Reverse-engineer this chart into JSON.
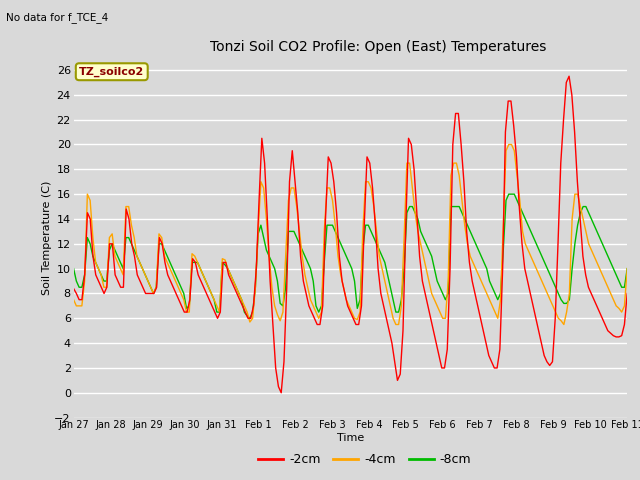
{
  "title": "Tonzi Soil CO2 Profile: Open (East) Temperatures",
  "subtitle": "No data for f_TCE_4",
  "xlabel": "Time",
  "ylabel": "Soil Temperature (C)",
  "ylim": [
    -2,
    27
  ],
  "yticks": [
    -2,
    0,
    2,
    4,
    6,
    8,
    10,
    12,
    14,
    16,
    18,
    20,
    22,
    24,
    26
  ],
  "legend_label": "TZ_soilco2",
  "tick_labels": [
    "Jan 27",
    "Jan 28",
    "Jan 29",
    "Jan 30",
    "Jan 31",
    "Feb 1",
    "Feb 2",
    "Feb 3",
    "Feb 4",
    "Feb 5",
    "Feb 6",
    "Feb 7",
    "Feb 8",
    "Feb 9",
    "Feb 10",
    "Feb 11"
  ],
  "figsize": [
    6.4,
    4.8
  ],
  "dpi": 100,
  "bg_color": "#d8d8d8",
  "plot_bg": "#d9d9d9",
  "grid_color": "#ffffff",
  "red_color": "#ff0000",
  "orange_color": "#ffa500",
  "green_color": "#00bb00",
  "red_2cm": [
    8.4,
    8.0,
    7.5,
    7.5,
    9.5,
    14.5,
    14.0,
    11.0,
    9.5,
    9.0,
    8.5,
    8.0,
    8.5,
    12.0,
    12.0,
    9.5,
    9.0,
    8.5,
    8.5,
    14.8,
    14.0,
    12.0,
    11.0,
    9.5,
    9.0,
    8.5,
    8.0,
    8.0,
    8.0,
    8.0,
    8.5,
    12.5,
    12.0,
    10.5,
    9.5,
    9.0,
    8.5,
    8.0,
    7.5,
    7.0,
    6.5,
    6.5,
    7.5,
    10.8,
    10.5,
    9.5,
    9.0,
    8.5,
    8.0,
    7.5,
    7.0,
    6.5,
    6.0,
    6.5,
    10.5,
    10.5,
    9.5,
    9.0,
    8.5,
    8.0,
    7.5,
    7.0,
    6.5,
    6.0,
    6.0,
    7.0,
    10.0,
    15.5,
    20.5,
    18.5,
    14.0,
    9.0,
    5.5,
    2.0,
    0.5,
    0.0,
    2.5,
    8.5,
    17.0,
    19.5,
    17.0,
    14.5,
    11.0,
    9.0,
    8.0,
    7.0,
    6.5,
    6.0,
    5.5,
    5.5,
    7.0,
    14.0,
    19.0,
    18.5,
    17.0,
    14.5,
    11.0,
    9.0,
    8.0,
    7.0,
    6.5,
    6.0,
    5.5,
    5.5,
    7.0,
    13.5,
    19.0,
    18.5,
    16.5,
    13.5,
    10.0,
    8.0,
    7.0,
    6.0,
    5.0,
    4.0,
    2.5,
    1.0,
    1.5,
    5.0,
    13.5,
    20.5,
    20.0,
    18.0,
    14.5,
    11.0,
    9.0,
    8.0,
    7.0,
    6.0,
    5.0,
    4.0,
    3.0,
    2.0,
    2.0,
    3.5,
    10.0,
    20.0,
    22.5,
    22.5,
    20.0,
    17.0,
    13.0,
    10.5,
    9.0,
    8.0,
    7.0,
    6.0,
    5.0,
    4.0,
    3.0,
    2.5,
    2.0,
    2.0,
    3.5,
    10.0,
    21.0,
    23.5,
    23.5,
    21.5,
    19.0,
    15.0,
    12.0,
    10.0,
    9.0,
    8.0,
    7.0,
    6.0,
    5.0,
    4.0,
    3.0,
    2.5,
    2.2,
    2.5,
    6.0,
    12.0,
    18.5,
    22.0,
    25.0,
    25.5,
    24.0,
    21.0,
    17.0,
    14.0,
    11.0,
    9.5,
    8.5,
    8.0,
    7.5,
    7.0,
    6.5,
    6.0,
    5.5,
    5.0,
    4.8,
    4.6,
    4.5,
    4.5,
    4.6,
    5.5,
    8.0
  ],
  "orange_4cm": [
    7.5,
    7.0,
    7.0,
    7.0,
    9.0,
    16.0,
    15.5,
    12.5,
    10.5,
    10.0,
    9.5,
    8.5,
    8.5,
    12.5,
    12.8,
    11.0,
    10.5,
    10.0,
    9.5,
    15.0,
    15.0,
    13.5,
    12.5,
    11.0,
    10.5,
    10.0,
    9.5,
    9.0,
    8.5,
    8.0,
    8.5,
    12.8,
    12.5,
    11.0,
    10.5,
    10.0,
    9.5,
    9.0,
    8.5,
    8.0,
    7.5,
    6.5,
    6.5,
    11.2,
    11.0,
    10.5,
    10.0,
    9.5,
    9.0,
    8.5,
    8.0,
    7.5,
    7.0,
    6.5,
    10.8,
    10.7,
    10.0,
    9.5,
    9.0,
    8.5,
    8.0,
    7.5,
    7.0,
    6.5,
    5.7,
    6.0,
    8.5,
    13.0,
    17.0,
    16.5,
    14.0,
    11.0,
    8.5,
    7.0,
    6.3,
    5.8,
    6.5,
    11.0,
    15.5,
    16.5,
    16.5,
    15.0,
    13.0,
    11.0,
    9.5,
    8.5,
    7.5,
    7.0,
    6.5,
    6.0,
    6.5,
    13.0,
    16.5,
    16.5,
    15.5,
    13.5,
    11.0,
    9.5,
    8.5,
    7.5,
    7.0,
    6.5,
    6.0,
    5.9,
    6.5,
    13.0,
    17.0,
    17.0,
    16.5,
    15.0,
    13.0,
    11.0,
    10.0,
    9.0,
    8.0,
    7.0,
    6.0,
    5.5,
    5.5,
    7.0,
    12.5,
    18.5,
    18.5,
    16.5,
    14.5,
    13.0,
    12.0,
    11.0,
    10.0,
    9.0,
    8.0,
    7.5,
    7.0,
    6.5,
    6.0,
    6.0,
    9.0,
    17.5,
    18.5,
    18.5,
    17.5,
    15.5,
    13.5,
    12.0,
    11.0,
    10.5,
    10.0,
    9.5,
    9.0,
    8.5,
    8.0,
    7.5,
    7.0,
    6.5,
    6.0,
    7.5,
    13.5,
    19.5,
    20.0,
    20.0,
    19.5,
    17.5,
    15.5,
    13.0,
    12.0,
    11.5,
    11.0,
    10.5,
    10.0,
    9.5,
    9.0,
    8.5,
    8.0,
    7.5,
    7.0,
    6.5,
    6.0,
    5.8,
    5.5,
    6.5,
    8.0,
    14.0,
    16.0,
    16.0,
    15.0,
    14.0,
    13.0,
    12.0,
    11.5,
    11.0,
    10.5,
    10.0,
    9.5,
    9.0,
    8.5,
    8.0,
    7.5,
    7.0,
    6.8,
    6.5,
    7.0,
    10.0
  ],
  "green_8cm": [
    10.0,
    9.0,
    8.5,
    8.5,
    9.5,
    12.5,
    12.0,
    11.0,
    10.5,
    10.0,
    9.5,
    9.0,
    9.0,
    11.5,
    12.0,
    11.5,
    11.0,
    10.5,
    10.0,
    12.5,
    12.5,
    12.0,
    11.5,
    11.0,
    10.5,
    10.0,
    9.5,
    9.0,
    8.5,
    8.0,
    8.5,
    12.0,
    12.0,
    11.5,
    11.0,
    10.5,
    10.0,
    9.5,
    9.0,
    8.5,
    8.0,
    6.8,
    7.0,
    10.5,
    10.5,
    10.5,
    10.0,
    9.5,
    9.0,
    8.5,
    8.0,
    7.5,
    6.5,
    6.5,
    10.5,
    10.3,
    10.0,
    9.5,
    9.0,
    8.5,
    8.0,
    7.5,
    6.5,
    6.2,
    6.0,
    6.5,
    8.5,
    12.8,
    13.5,
    12.5,
    11.5,
    11.0,
    10.5,
    10.0,
    9.0,
    7.2,
    7.0,
    8.5,
    13.0,
    13.0,
    13.0,
    12.5,
    12.0,
    11.5,
    11.0,
    10.5,
    10.0,
    9.0,
    7.0,
    6.5,
    7.0,
    10.5,
    13.5,
    13.5,
    13.5,
    13.0,
    12.5,
    12.0,
    11.5,
    11.0,
    10.5,
    10.0,
    9.0,
    6.8,
    7.5,
    11.5,
    13.5,
    13.5,
    13.0,
    12.5,
    12.0,
    11.5,
    11.0,
    10.5,
    9.5,
    8.5,
    7.5,
    6.5,
    6.5,
    7.5,
    10.0,
    14.5,
    15.0,
    15.0,
    14.5,
    14.0,
    13.0,
    12.5,
    12.0,
    11.5,
    11.0,
    10.0,
    9.0,
    8.5,
    8.0,
    7.5,
    8.0,
    15.0,
    15.0,
    15.0,
    15.0,
    14.5,
    14.0,
    13.5,
    13.0,
    12.5,
    12.0,
    11.5,
    11.0,
    10.5,
    10.0,
    9.0,
    8.5,
    8.0,
    7.5,
    8.0,
    11.5,
    15.5,
    16.0,
    16.0,
    16.0,
    15.5,
    15.0,
    14.5,
    14.0,
    13.5,
    13.0,
    12.5,
    12.0,
    11.5,
    11.0,
    10.5,
    10.0,
    9.5,
    9.0,
    8.5,
    8.0,
    7.5,
    7.2,
    7.2,
    7.5,
    10.0,
    12.0,
    13.5,
    14.5,
    15.0,
    15.0,
    14.5,
    14.0,
    13.5,
    13.0,
    12.5,
    12.0,
    11.5,
    11.0,
    10.5,
    10.0,
    9.5,
    9.0,
    8.5,
    8.5,
    10.0
  ]
}
